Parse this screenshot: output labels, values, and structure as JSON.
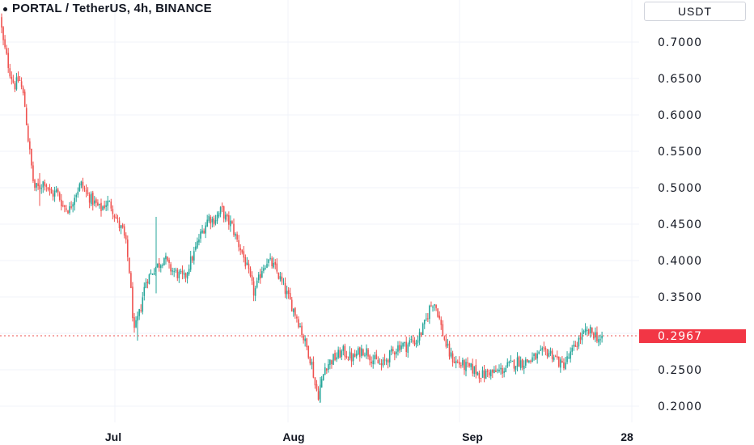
{
  "header": {
    "title": "PORTAL / TetherUS, 4h, BINANCE",
    "currency": "USDT"
  },
  "colors": {
    "up": "#26a69a",
    "down": "#ef5350",
    "grid": "#f0f3fa",
    "axis_text": "#131722",
    "last_price_line": "#ef5350",
    "last_price_badge": "#f23645"
  },
  "chart_data": {
    "type": "candlestick",
    "symbol": "PORTAL / TetherUS",
    "interval": "4h",
    "exchange": "BINANCE",
    "y_axis": {
      "ticks": [
        "0.7000",
        "0.6500",
        "0.6000",
        "0.5500",
        "0.5000",
        "0.4500",
        "0.4000",
        "0.3500",
        "0.2500",
        "0.2000"
      ],
      "tick_values": [
        0.7,
        0.65,
        0.6,
        0.55,
        0.5,
        0.45,
        0.4,
        0.35,
        0.25,
        0.2
      ],
      "range": [
        0.17,
        0.75
      ]
    },
    "x_axis": {
      "ticks": [
        "Jul",
        "Aug",
        "Sep",
        "28"
      ]
    },
    "last_price": 0.2967,
    "last_price_label": "0.2967",
    "close_path": [
      [
        0,
        0.735
      ],
      [
        4,
        0.7
      ],
      [
        12,
        0.66
      ],
      [
        18,
        0.64
      ],
      [
        24,
        0.65
      ],
      [
        30,
        0.62
      ],
      [
        35,
        0.565
      ],
      [
        42,
        0.5
      ],
      [
        48,
        0.5
      ],
      [
        55,
        0.51
      ],
      [
        63,
        0.49
      ],
      [
        70,
        0.495
      ],
      [
        78,
        0.475
      ],
      [
        86,
        0.47
      ],
      [
        92,
        0.49
      ],
      [
        100,
        0.505
      ],
      [
        108,
        0.49
      ],
      [
        116,
        0.48
      ],
      [
        124,
        0.47
      ],
      [
        132,
        0.48
      ],
      [
        138,
        0.475
      ],
      [
        146,
        0.45
      ],
      [
        152,
        0.44
      ],
      [
        156,
        0.42
      ],
      [
        160,
        0.385
      ],
      [
        163,
        0.34
      ],
      [
        166,
        0.3
      ],
      [
        169,
        0.315
      ],
      [
        173,
        0.33
      ],
      [
        177,
        0.355
      ],
      [
        181,
        0.375
      ],
      [
        186,
        0.38
      ],
      [
        191,
        0.39
      ],
      [
        197,
        0.395
      ],
      [
        203,
        0.405
      ],
      [
        209,
        0.39
      ],
      [
        215,
        0.385
      ],
      [
        221,
        0.38
      ],
      [
        228,
        0.375
      ],
      [
        234,
        0.395
      ],
      [
        240,
        0.41
      ],
      [
        246,
        0.43
      ],
      [
        252,
        0.445
      ],
      [
        258,
        0.46
      ],
      [
        263,
        0.455
      ],
      [
        268,
        0.46
      ],
      [
        274,
        0.47
      ],
      [
        280,
        0.455
      ],
      [
        286,
        0.45
      ],
      [
        292,
        0.43
      ],
      [
        298,
        0.415
      ],
      [
        304,
        0.395
      ],
      [
        309,
        0.375
      ],
      [
        314,
        0.355
      ],
      [
        319,
        0.37
      ],
      [
        324,
        0.39
      ],
      [
        330,
        0.4
      ],
      [
        336,
        0.395
      ],
      [
        342,
        0.385
      ],
      [
        348,
        0.37
      ],
      [
        354,
        0.355
      ],
      [
        360,
        0.34
      ],
      [
        366,
        0.325
      ],
      [
        371,
        0.31
      ],
      [
        376,
        0.29
      ],
      [
        381,
        0.275
      ],
      [
        386,
        0.255
      ],
      [
        390,
        0.225
      ],
      [
        394,
        0.215
      ],
      [
        398,
        0.235
      ],
      [
        402,
        0.255
      ],
      [
        407,
        0.26
      ],
      [
        412,
        0.265
      ],
      [
        418,
        0.27
      ],
      [
        424,
        0.275
      ],
      [
        430,
        0.27
      ],
      [
        436,
        0.265
      ],
      [
        442,
        0.272
      ],
      [
        448,
        0.278
      ],
      [
        454,
        0.275
      ],
      [
        460,
        0.265
      ],
      [
        466,
        0.26
      ],
      [
        472,
        0.255
      ],
      [
        478,
        0.265
      ],
      [
        484,
        0.272
      ],
      [
        490,
        0.28
      ],
      [
        496,
        0.285
      ],
      [
        502,
        0.282
      ],
      [
        508,
        0.29
      ],
      [
        514,
        0.288
      ],
      [
        520,
        0.3
      ],
      [
        526,
        0.315
      ],
      [
        531,
        0.335
      ],
      [
        536,
        0.345
      ],
      [
        541,
        0.33
      ],
      [
        546,
        0.305
      ],
      [
        551,
        0.285
      ],
      [
        556,
        0.27
      ],
      [
        562,
        0.262
      ],
      [
        568,
        0.258
      ],
      [
        574,
        0.255
      ],
      [
        580,
        0.252
      ],
      [
        586,
        0.25
      ],
      [
        592,
        0.245
      ],
      [
        598,
        0.242
      ],
      [
        604,
        0.248
      ],
      [
        610,
        0.245
      ],
      [
        616,
        0.248
      ],
      [
        622,
        0.25
      ],
      [
        628,
        0.255
      ],
      [
        634,
        0.258
      ],
      [
        640,
        0.262
      ],
      [
        646,
        0.26
      ],
      [
        652,
        0.262
      ],
      [
        658,
        0.265
      ],
      [
        664,
        0.268
      ],
      [
        670,
        0.272
      ],
      [
        676,
        0.275
      ],
      [
        682,
        0.272
      ],
      [
        688,
        0.265
      ],
      [
        694,
        0.255
      ],
      [
        700,
        0.262
      ],
      [
        706,
        0.272
      ],
      [
        712,
        0.285
      ],
      [
        718,
        0.295
      ],
      [
        724,
        0.3
      ],
      [
        730,
        0.302
      ],
      [
        736,
        0.298
      ],
      [
        742,
        0.29
      ],
      [
        746,
        0.2967
      ]
    ]
  }
}
